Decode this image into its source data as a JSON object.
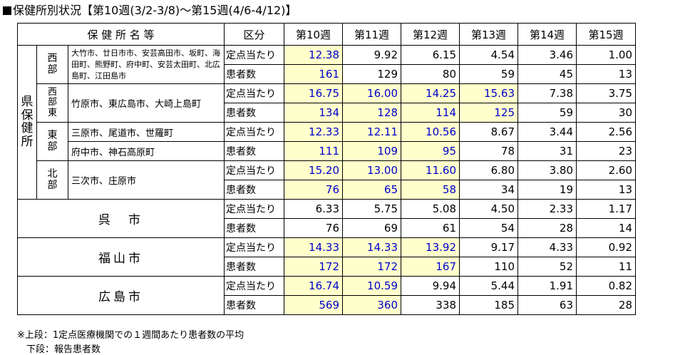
{
  "title": "保健所別状況【第10週(3/2-3/8)～第15週(4/6-4/12)】",
  "header": {
    "name": "保 健 所 名 等",
    "category": "区分",
    "weeks": [
      "第10週",
      "第11週",
      "第12週",
      "第13週",
      "第14週",
      "第15週"
    ]
  },
  "labels": {
    "rate": "定点当たり",
    "patients": "患者数"
  },
  "prefecture": "県保健所",
  "groups": [
    {
      "district": "西部",
      "areas": [
        "大竹市、廿日市市、安芸高田市、坂町、海田町、熊野町、府中町、安芸太田町、北広島町、江田島市"
      ],
      "rate": [
        "12.38",
        "9.92",
        "6.15",
        "4.54",
        "3.46",
        "1.00"
      ],
      "patients": [
        "161",
        "129",
        "80",
        "59",
        "45",
        "13"
      ],
      "rate_hl": [
        true,
        false,
        false,
        false,
        false,
        false
      ],
      "patients_hl": [
        true,
        false,
        false,
        false,
        false,
        false
      ]
    },
    {
      "district": "西部東",
      "areas": [
        "竹原市、東広島市、大崎上島町"
      ],
      "rate": [
        "16.75",
        "16.00",
        "14.25",
        "15.63",
        "7.38",
        "3.75"
      ],
      "patients": [
        "134",
        "128",
        "114",
        "125",
        "59",
        "30"
      ],
      "rate_hl": [
        true,
        true,
        true,
        true,
        false,
        false
      ],
      "patients_hl": [
        true,
        true,
        true,
        true,
        false,
        false
      ]
    },
    {
      "district": "東部",
      "areas": [
        "三原市、尾道市、世羅町",
        "府中市、神石高原町"
      ],
      "rate": [
        "12.33",
        "12.11",
        "10.56",
        "8.67",
        "3.44",
        "2.56"
      ],
      "patients": [
        "111",
        "109",
        "95",
        "78",
        "31",
        "23"
      ],
      "rate_hl": [
        true,
        true,
        true,
        false,
        false,
        false
      ],
      "patients_hl": [
        true,
        true,
        true,
        false,
        false,
        false
      ]
    },
    {
      "district": "北部",
      "areas": [
        "三次市、庄原市"
      ],
      "rate": [
        "15.20",
        "13.00",
        "11.60",
        "6.80",
        "3.80",
        "2.60"
      ],
      "patients": [
        "76",
        "65",
        "58",
        "34",
        "19",
        "13"
      ],
      "rate_hl": [
        true,
        true,
        true,
        false,
        false,
        false
      ],
      "patients_hl": [
        true,
        true,
        true,
        false,
        false,
        false
      ]
    }
  ],
  "cities": [
    {
      "name": "呉　市",
      "rate": [
        "6.33",
        "5.75",
        "5.08",
        "4.50",
        "2.33",
        "1.17"
      ],
      "patients": [
        "76",
        "69",
        "61",
        "54",
        "28",
        "14"
      ],
      "rate_hl": [
        false,
        false,
        false,
        false,
        false,
        false
      ],
      "patients_hl": [
        false,
        false,
        false,
        false,
        false,
        false
      ]
    },
    {
      "name": "福山市",
      "rate": [
        "14.33",
        "14.33",
        "13.92",
        "9.17",
        "4.33",
        "0.92"
      ],
      "patients": [
        "172",
        "172",
        "167",
        "110",
        "52",
        "11"
      ],
      "rate_hl": [
        true,
        true,
        true,
        false,
        false,
        false
      ],
      "patients_hl": [
        true,
        true,
        true,
        false,
        false,
        false
      ]
    },
    {
      "name": "広島市",
      "rate": [
        "16.74",
        "10.59",
        "9.94",
        "5.44",
        "1.91",
        "0.82"
      ],
      "patients": [
        "569",
        "360",
        "338",
        "185",
        "63",
        "28"
      ],
      "rate_hl": [
        true,
        true,
        false,
        false,
        false,
        false
      ],
      "patients_hl": [
        true,
        true,
        false,
        false,
        false,
        false
      ]
    }
  ],
  "notes": [
    "※上段：1定点医療機関での１週間あたり患者数の平均",
    "　下段：報告患者数"
  ],
  "colors": {
    "highlight_bg": "#ffffcc",
    "highlight_text": "#0000cc",
    "border": "#000000"
  }
}
